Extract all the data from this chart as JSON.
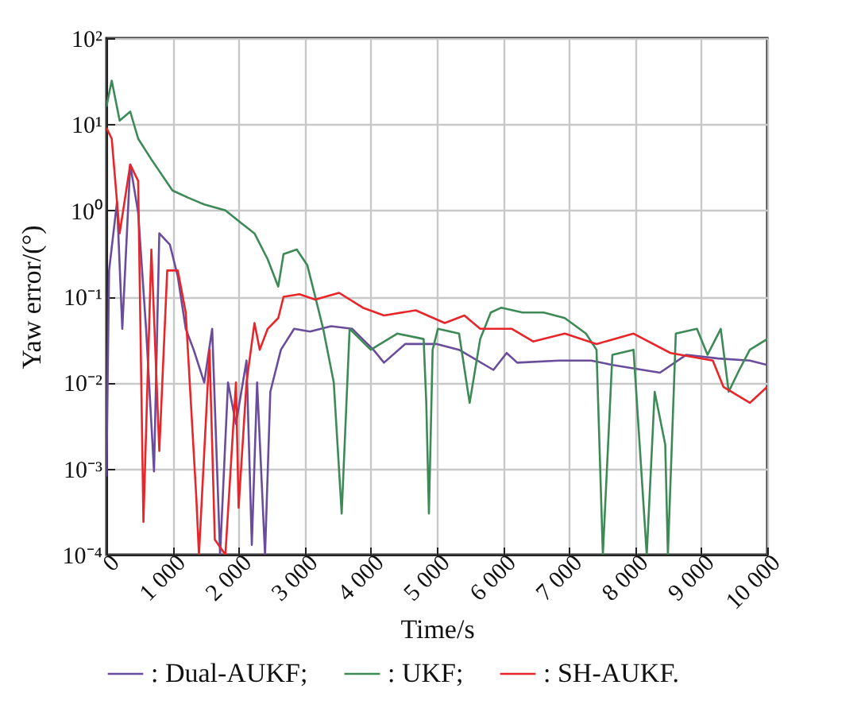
{
  "chart_data": {
    "type": "line",
    "xlabel": "Time/s",
    "ylabel": "Yaw error/(°)",
    "log": "y",
    "grid": true,
    "legend": "bottom",
    "line_style": "solid",
    "marker": "none",
    "xlim": [
      0,
      10000
    ],
    "xticks": [
      0,
      {
        "value": 1000,
        "label": "1 000"
      },
      {
        "value": 2000,
        "label": "2 000"
      },
      {
        "value": 3000,
        "label": "3 000"
      },
      {
        "value": 4000,
        "label": "4 000"
      },
      {
        "value": 5000,
        "label": "5 000"
      },
      {
        "value": 6000,
        "label": "6 000"
      },
      {
        "value": 7000,
        "label": "7 000"
      },
      {
        "value": 8000,
        "label": "8 000"
      },
      {
        "value": 9000,
        "label": "9 000"
      },
      {
        "value": 10000,
        "label": "10 000"
      }
    ],
    "ylim": [
      0.0001,
      100
    ],
    "yticks": [
      {
        "value": 0.0001,
        "label": "10⁻⁴"
      },
      {
        "value": 0.001,
        "label": "10⁻³"
      },
      {
        "value": 0.01,
        "label": "10⁻²"
      },
      {
        "value": 0.1,
        "label": "10⁻¹"
      },
      {
        "value": 1,
        "label": "10⁰"
      },
      {
        "value": 10,
        "label": "10¹"
      },
      {
        "value": 100,
        "label": "10²"
      }
    ],
    "series": [
      {
        "name": ": Dual-AUKF;",
        "color": "#6a4c9c",
        "x": [
          0,
          40,
          160,
          240,
          360,
          480,
          600,
          720,
          800,
          960,
          1080,
          1200,
          1320,
          1480,
          1600,
          1720,
          1840,
          1960,
          2120,
          2200,
          2280,
          2400,
          2480,
          2640,
          2840,
          3080,
          3400,
          3720,
          4040,
          4200,
          4520,
          5000,
          5336,
          5856,
          6056,
          6216,
          6856,
          7336,
          7656,
          8376,
          8776,
          9256,
          9736,
          10000
        ],
        "values": [
          0.00081,
          0.2,
          1.25,
          0.042,
          3.4,
          0.94,
          0.042,
          0.00093,
          0.54,
          0.4,
          0.17,
          0.042,
          0.024,
          0.01,
          0.042,
          0.0001,
          0.01,
          0.0033,
          0.018,
          0.00013,
          0.01,
          0.0001,
          0.0078,
          0.024,
          0.042,
          0.039,
          0.045,
          0.042,
          0.024,
          0.017,
          0.028,
          0.028,
          0.024,
          0.014,
          0.022,
          0.017,
          0.018,
          0.018,
          0.016,
          0.013,
          0.021,
          0.019,
          0.018,
          0.016
        ]
      },
      {
        "name": ": UKF;",
        "color": "#3d8a57",
        "x": [
          0,
          80,
          200,
          360,
          480,
          680,
          1000,
          1240,
          1480,
          1800,
          2040,
          2240,
          2440,
          2600,
          2680,
          2880,
          3040,
          3160,
          3280,
          3440,
          3560,
          3680,
          4000,
          4400,
          4800,
          4840,
          4880,
          4936,
          5016,
          5336,
          5496,
          5656,
          5816,
          5976,
          6296,
          6616,
          6936,
          7256,
          7416,
          7512,
          7656,
          7976,
          8176,
          8296,
          8456,
          8496,
          8616,
          8936,
          9096,
          9296,
          9416,
          9576,
          9736,
          10000
        ],
        "values": [
          16,
          32,
          11,
          14,
          6.8,
          3.9,
          1.7,
          1.4,
          1.17,
          1.0,
          0.71,
          0.54,
          0.27,
          0.13,
          0.31,
          0.35,
          0.23,
          0.099,
          0.042,
          0.01,
          0.0003,
          0.042,
          0.024,
          0.037,
          0.032,
          0.0058,
          0.0003,
          0.024,
          0.042,
          0.037,
          0.0058,
          0.032,
          0.065,
          0.074,
          0.065,
          0.065,
          0.056,
          0.037,
          0.024,
          0.0001,
          0.021,
          0.024,
          0.0001,
          0.0078,
          0.0019,
          0.0001,
          0.037,
          0.042,
          0.021,
          0.042,
          0.0078,
          0.014,
          0.024,
          0.032
        ]
      },
      {
        "name": ": SH-AUKF.",
        "color": "#e8262a",
        "x": [
          0,
          80,
          200,
          360,
          480,
          560,
          680,
          800,
          920,
          1080,
          1200,
          1360,
          1400,
          1560,
          1640,
          1800,
          1960,
          2000,
          2120,
          2240,
          2320,
          2440,
          2600,
          2680,
          2920,
          3160,
          3520,
          3880,
          4200,
          4680,
          5120,
          5416,
          5656,
          6136,
          6456,
          6936,
          7416,
          7976,
          8536,
          9176,
          9336,
          9736,
          10000
        ],
        "values": [
          9.1,
          6.8,
          0.54,
          3.4,
          2.2,
          0.00024,
          0.35,
          0.0016,
          0.2,
          0.2,
          0.065,
          0.00046,
          0.0001,
          0.024,
          0.00015,
          0.0001,
          0.01,
          0.00035,
          0.01,
          0.049,
          0.024,
          0.042,
          0.056,
          0.099,
          0.106,
          0.092,
          0.11,
          0.074,
          0.06,
          0.069,
          0.049,
          0.06,
          0.042,
          0.042,
          0.03,
          0.037,
          0.028,
          0.037,
          0.022,
          0.018,
          0.0089,
          0.0058,
          0.0089
        ]
      }
    ]
  }
}
